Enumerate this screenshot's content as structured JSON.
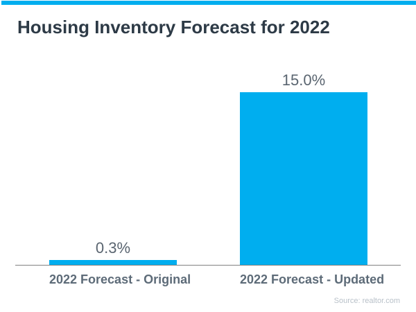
{
  "page": {
    "title": "Housing Inventory Forecast for 2022"
  },
  "colors": {
    "accent": "#00AEEF",
    "title_text": "#2d3a46",
    "value_text": "#5a6570",
    "category_text": "#5d6b78",
    "axis_line": "#808080",
    "source_text": "#b9c1c9",
    "background": "#ffffff"
  },
  "chart_data": {
    "type": "bar",
    "title": "Housing Inventory Forecast for 2022",
    "categories": [
      "2022 Forecast - Original",
      "2022 Forecast - Updated"
    ],
    "values": [
      0.3,
      15.0
    ],
    "value_labels": [
      "0.3%",
      "15.0%"
    ],
    "xlabel": "",
    "ylabel": "",
    "ylim": [
      0,
      16
    ],
    "grid": false,
    "legend": false,
    "bar_color": "#00AEEF",
    "axis": "x-baseline-only"
  },
  "source": {
    "label": "Source: realtor.com"
  }
}
